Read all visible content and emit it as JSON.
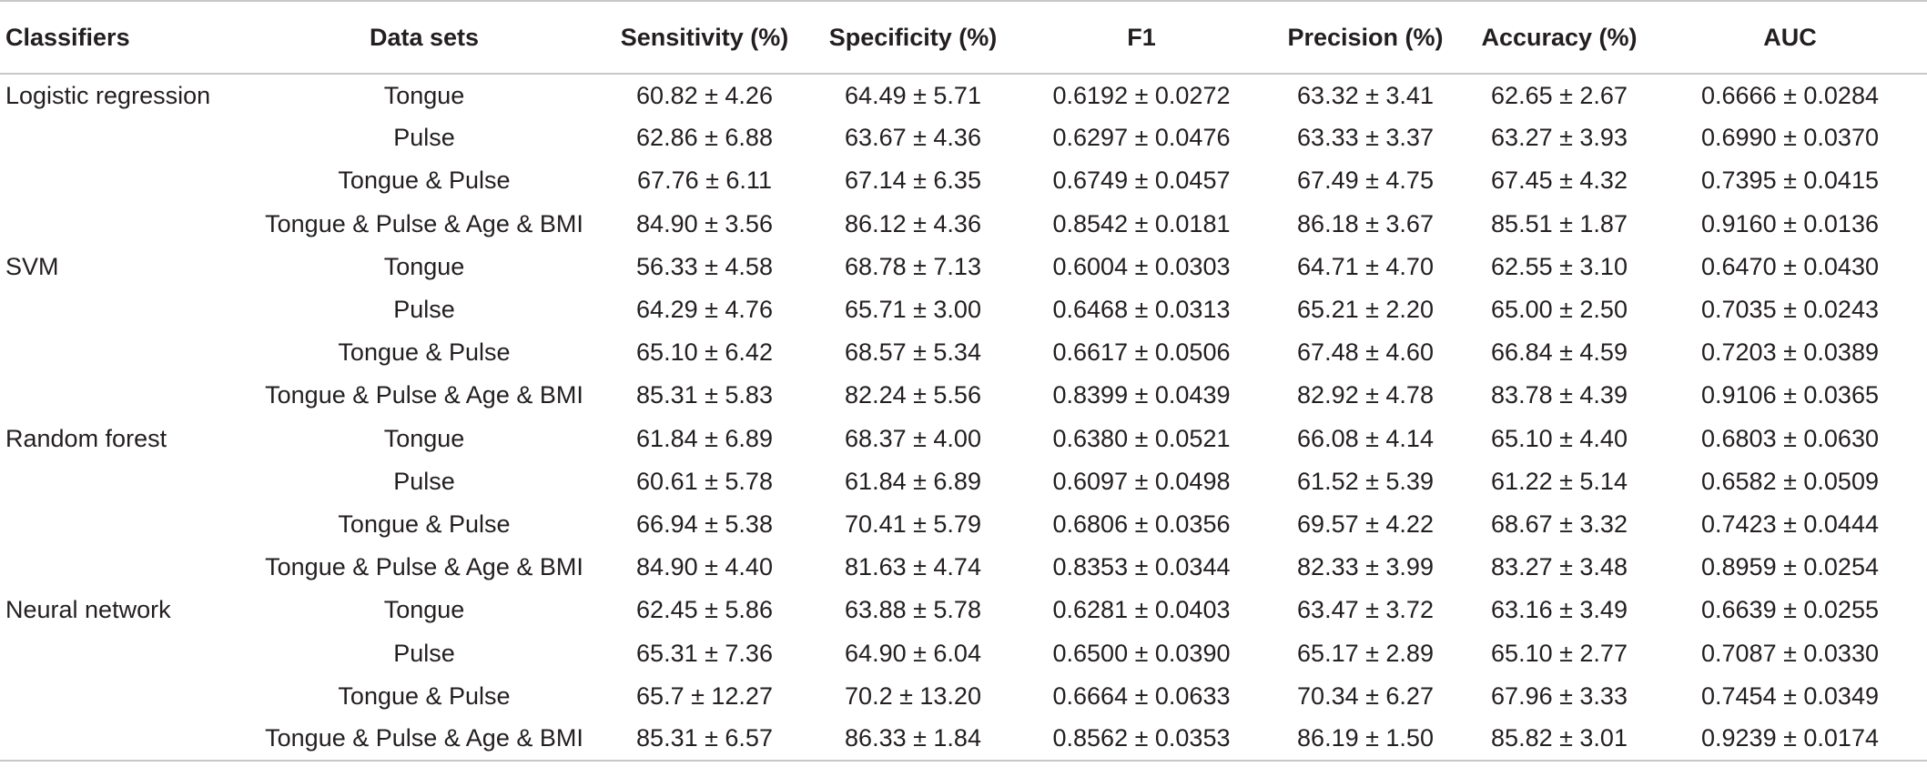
{
  "table": {
    "headers": [
      "Classifiers",
      "Data sets",
      "Sensitivity (%)",
      "Specificity (%)",
      "F1",
      "Precision (%)",
      "Accuracy (%)",
      "AUC"
    ],
    "rows": [
      [
        "Logistic regression",
        "Tongue",
        "60.82 ± 4.26",
        "64.49 ± 5.71",
        "0.6192 ± 0.0272",
        "63.32 ± 3.41",
        "62.65 ± 2.67",
        "0.6666 ± 0.0284"
      ],
      [
        "",
        "Pulse",
        "62.86 ± 6.88",
        "63.67 ± 4.36",
        "0.6297 ± 0.0476",
        "63.33 ± 3.37",
        "63.27 ± 3.93",
        "0.6990 ± 0.0370"
      ],
      [
        "",
        "Tongue & Pulse",
        "67.76 ± 6.11",
        "67.14 ± 6.35",
        "0.6749 ± 0.0457",
        "67.49 ± 4.75",
        "67.45 ± 4.32",
        "0.7395 ± 0.0415"
      ],
      [
        "",
        "Tongue & Pulse & Age & BMI",
        "84.90 ± 3.56",
        "86.12 ± 4.36",
        "0.8542 ± 0.0181",
        "86.18 ± 3.67",
        "85.51 ± 1.87",
        "0.9160 ± 0.0136"
      ],
      [
        "SVM",
        "Tongue",
        "56.33 ± 4.58",
        "68.78 ± 7.13",
        "0.6004 ± 0.0303",
        "64.71 ± 4.70",
        "62.55 ± 3.10",
        "0.6470 ± 0.0430"
      ],
      [
        "",
        "Pulse",
        "64.29 ± 4.76",
        "65.71 ± 3.00",
        "0.6468 ± 0.0313",
        "65.21 ± 2.20",
        "65.00 ± 2.50",
        "0.7035 ± 0.0243"
      ],
      [
        "",
        "Tongue & Pulse",
        "65.10 ± 6.42",
        "68.57 ± 5.34",
        "0.6617 ± 0.0506",
        "67.48 ± 4.60",
        "66.84 ± 4.59",
        "0.7203 ± 0.0389"
      ],
      [
        "",
        "Tongue & Pulse & Age & BMI",
        "85.31 ± 5.83",
        "82.24 ± 5.56",
        "0.8399 ± 0.0439",
        "82.92 ± 4.78",
        "83.78 ± 4.39",
        "0.9106 ± 0.0365"
      ],
      [
        "Random forest",
        "Tongue",
        "61.84 ± 6.89",
        "68.37 ± 4.00",
        "0.6380 ± 0.0521",
        "66.08 ± 4.14",
        "65.10 ± 4.40",
        "0.6803 ± 0.0630"
      ],
      [
        "",
        "Pulse",
        "60.61 ± 5.78",
        "61.84 ± 6.89",
        "0.6097 ± 0.0498",
        "61.52 ± 5.39",
        "61.22 ± 5.14",
        "0.6582 ± 0.0509"
      ],
      [
        "",
        "Tongue & Pulse",
        "66.94 ± 5.38",
        "70.41 ± 5.79",
        "0.6806 ± 0.0356",
        "69.57 ± 4.22",
        "68.67 ± 3.32",
        "0.7423 ± 0.0444"
      ],
      [
        "",
        "Tongue & Pulse & Age & BMI",
        "84.90 ± 4.40",
        "81.63 ± 4.74",
        "0.8353 ± 0.0344",
        "82.33 ± 3.99",
        "83.27 ± 3.48",
        "0.8959 ± 0.0254"
      ],
      [
        "Neural network",
        "Tongue",
        "62.45 ± 5.86",
        "63.88 ± 5.78",
        "0.6281 ± 0.0403",
        "63.47 ± 3.72",
        "63.16 ± 3.49",
        "0.6639 ± 0.0255"
      ],
      [
        "",
        "Pulse",
        "65.31 ± 7.36",
        "64.90 ± 6.04",
        "0.6500 ± 0.0390",
        "65.17 ± 2.89",
        "65.10 ± 2.77",
        "0.7087 ± 0.0330"
      ],
      [
        "",
        "Tongue & Pulse",
        "65.7 ± 12.27",
        "70.2 ± 13.20",
        "0.6664 ± 0.0633",
        "70.34 ± 6.27",
        "67.96 ± 3.33",
        "0.7454 ± 0.0349"
      ],
      [
        "",
        "Tongue & Pulse & Age & BMI",
        "85.31 ± 6.57",
        "86.33 ± 1.84",
        "0.8562 ± 0.0353",
        "86.19 ± 1.50",
        "85.82 ± 3.01",
        "0.9239 ± 0.0174"
      ]
    ]
  }
}
